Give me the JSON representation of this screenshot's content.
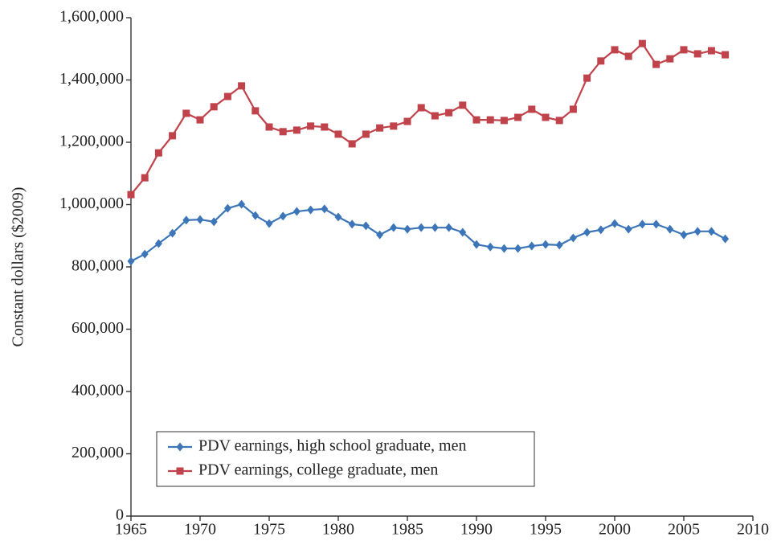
{
  "chart_data": {
    "type": "line",
    "y_label": "Constant dollars ($2009)",
    "x": [
      1965,
      1966,
      1967,
      1968,
      1969,
      1970,
      1971,
      1972,
      1973,
      1974,
      1975,
      1976,
      1977,
      1978,
      1979,
      1980,
      1981,
      1982,
      1983,
      1984,
      1985,
      1986,
      1987,
      1988,
      1989,
      1990,
      1991,
      1992,
      1993,
      1994,
      1995,
      1996,
      1997,
      1998,
      1999,
      2000,
      2001,
      2002,
      2003,
      2004,
      2005,
      2006,
      2007,
      2008
    ],
    "series": [
      {
        "name": "PDV earnings, high school graduate, men",
        "color": "#3c76b8",
        "marker": "diamond",
        "values": [
          818000,
          841000,
          875000,
          908000,
          950000,
          952000,
          945000,
          988000,
          1001000,
          965000,
          939000,
          963000,
          978000,
          983000,
          986000,
          960000,
          937000,
          932000,
          903000,
          926000,
          921000,
          926000,
          926000,
          926000,
          911000,
          872000,
          864000,
          859000,
          859000,
          867000,
          872000,
          870000,
          893000,
          911000,
          919000,
          939000,
          921000,
          937000,
          937000,
          921000,
          903000,
          914000,
          914000,
          890000
        ]
      },
      {
        "name": "PDV earnings, college graduate, men",
        "color": "#c0424a",
        "marker": "square",
        "values": [
          1032000,
          1086000,
          1166000,
          1221000,
          1293000,
          1272000,
          1314000,
          1347000,
          1381000,
          1301000,
          1249000,
          1234000,
          1239000,
          1252000,
          1249000,
          1226000,
          1195000,
          1226000,
          1246000,
          1252000,
          1267000,
          1311000,
          1285000,
          1295000,
          1319000,
          1272000,
          1272000,
          1270000,
          1280000,
          1306000,
          1280000,
          1270000,
          1306000,
          1406000,
          1461000,
          1497000,
          1476000,
          1517000,
          1450000,
          1468000,
          1497000,
          1484000,
          1494000,
          1481000
        ]
      }
    ],
    "xlim": [
      1965,
      2010
    ],
    "xticks": [
      1965,
      1970,
      1975,
      1980,
      1985,
      1990,
      1995,
      2000,
      2005,
      2010
    ],
    "ylim": [
      0,
      1600000
    ],
    "yticks": [
      0,
      {
        "value": 200000,
        "label": "200,000"
      },
      {
        "value": 400000,
        "label": "400,000"
      },
      {
        "value": 600000,
        "label": "600,000"
      },
      {
        "value": 800000,
        "label": "800,000"
      },
      {
        "value": 1000000,
        "label": "1,000,000"
      },
      {
        "value": 1200000,
        "label": "1,200,000"
      },
      {
        "value": 1400000,
        "label": "1,400,000"
      },
      {
        "value": 1600000,
        "label": "1,600,000"
      }
    ],
    "legend": "lower left"
  }
}
